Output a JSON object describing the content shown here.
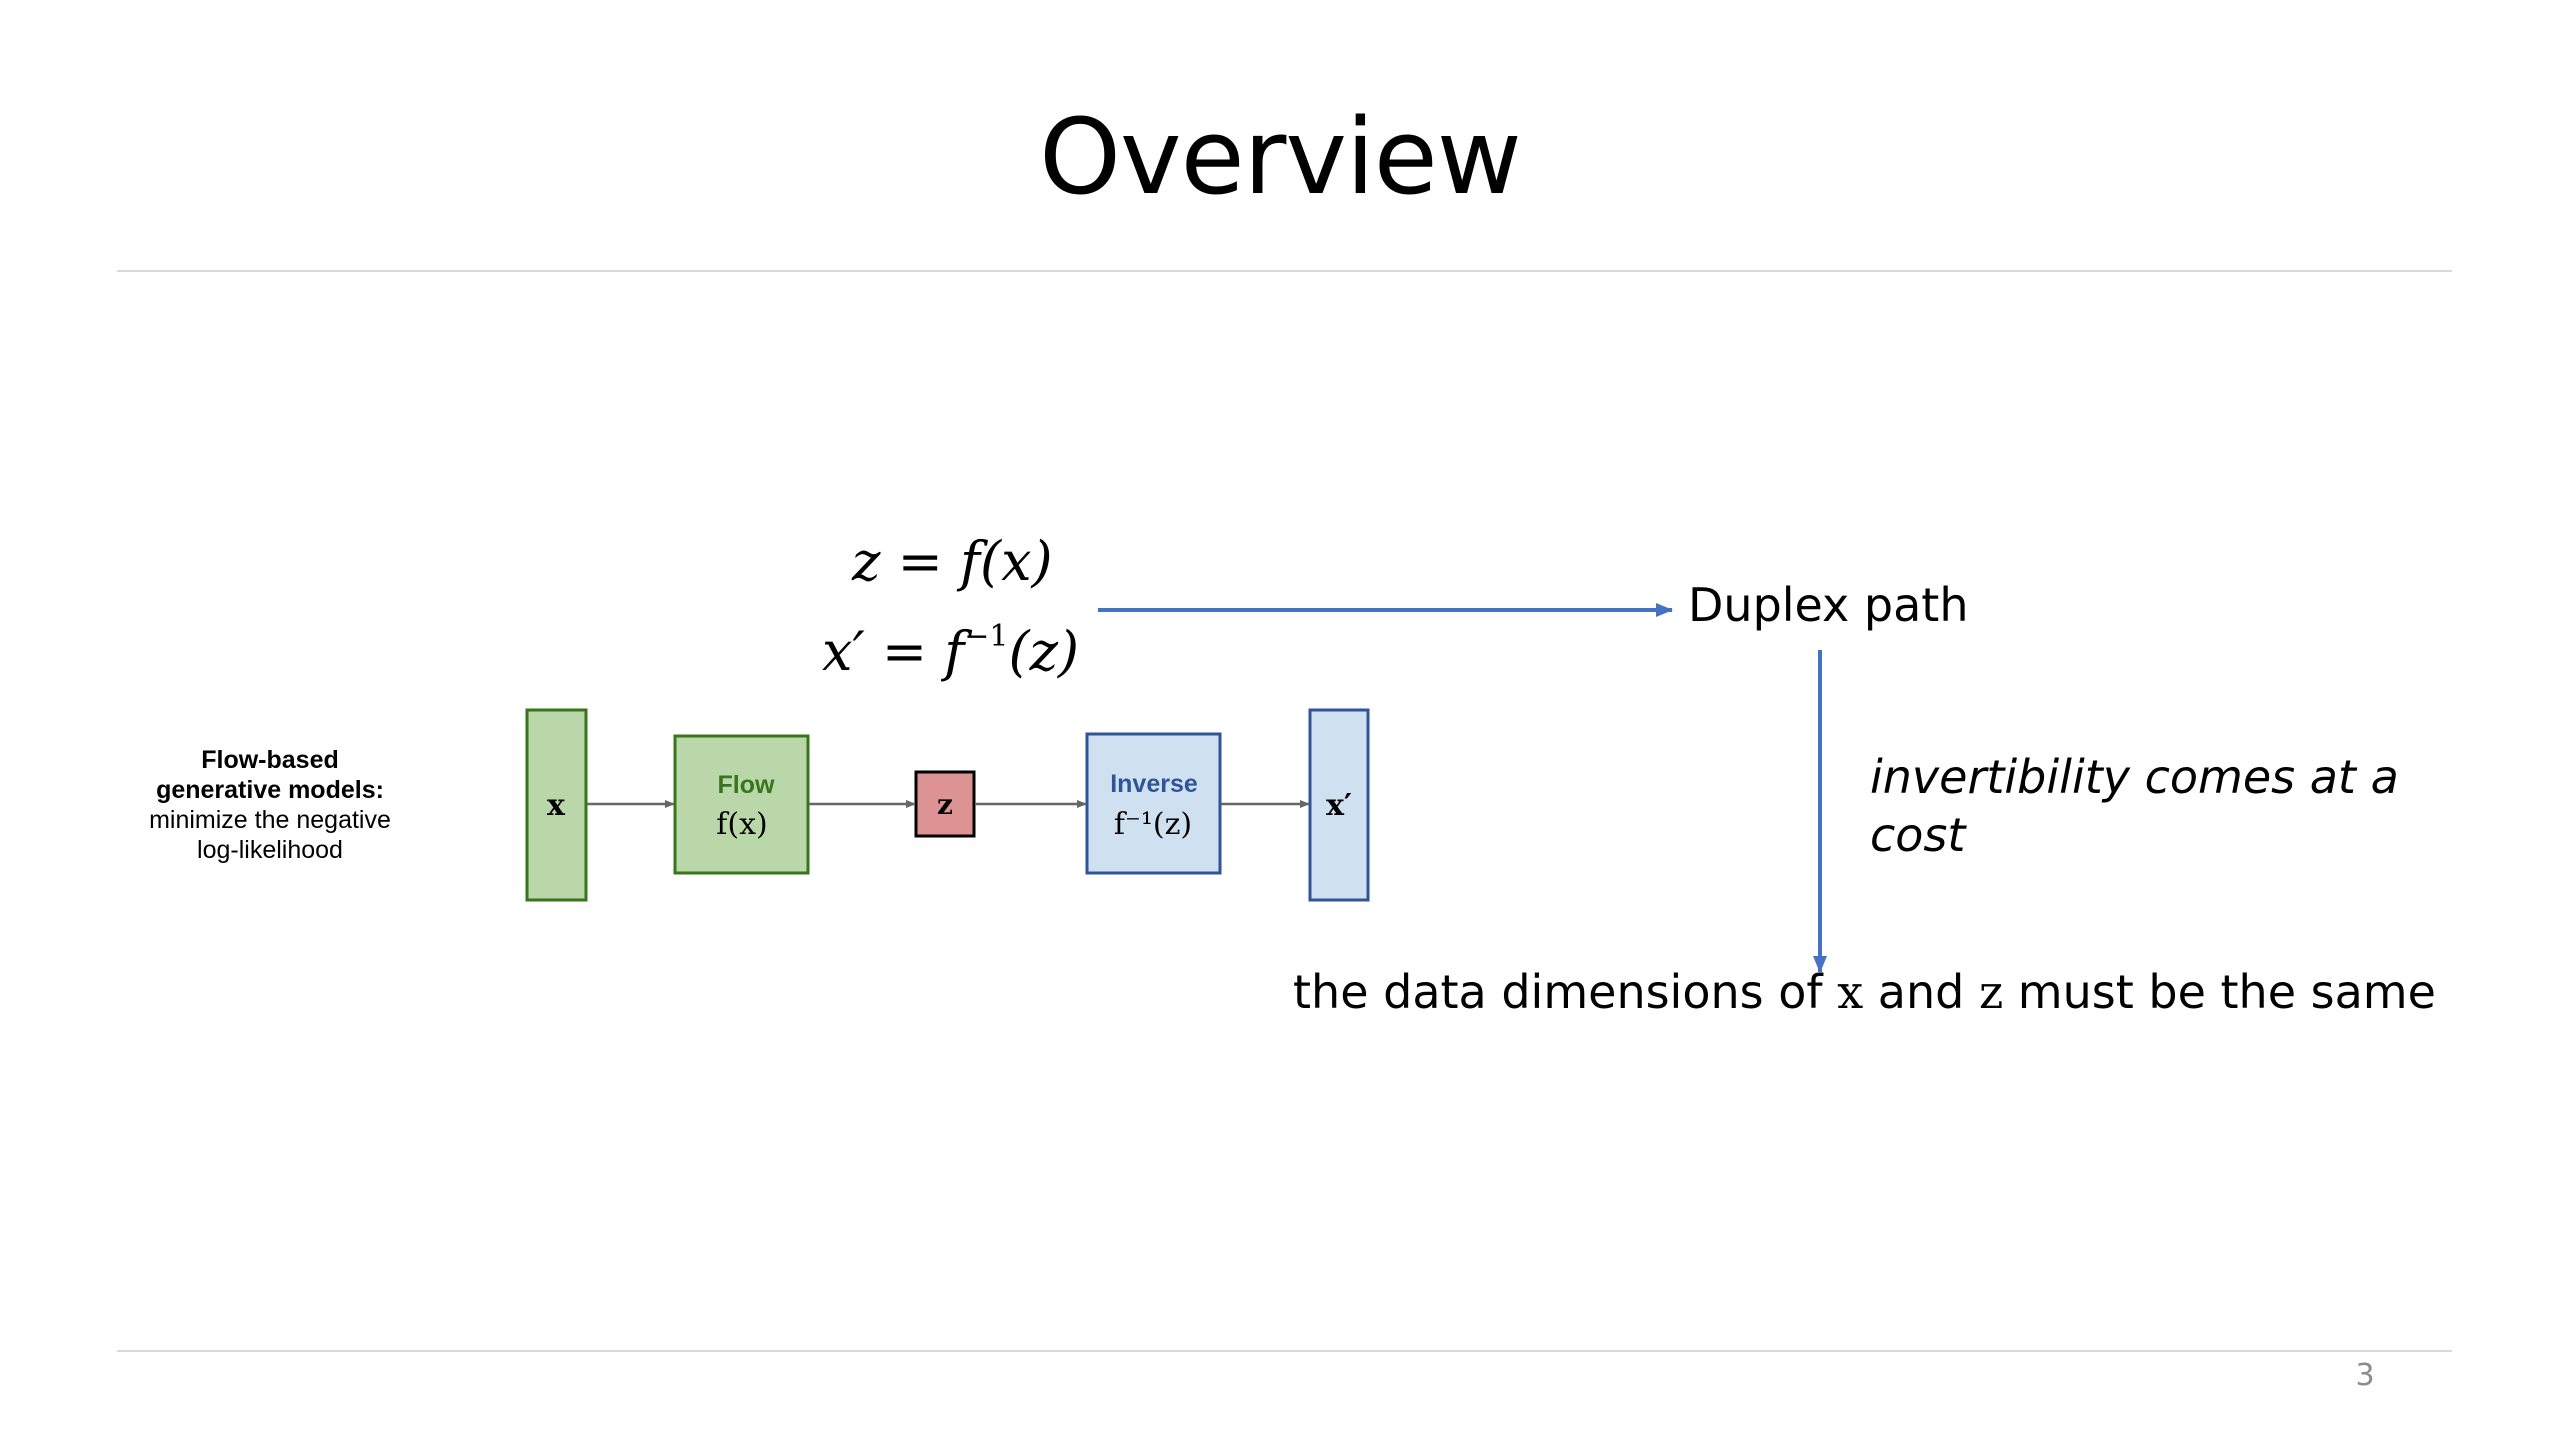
{
  "slide": {
    "title": "Overview",
    "page_number": "3"
  },
  "equations": {
    "forward": "z = f(x)",
    "inverse_lhs": "x′ = f",
    "inverse_sup": "−1",
    "inverse_rhs": "(z)"
  },
  "annotations": {
    "duplex_path": "Duplex path",
    "invertibility": "invertibility comes at a cost",
    "dims_prefix": "the data dimensions of ",
    "dims_var_x": "x",
    "dims_middle": " and ",
    "dims_var_z": "z",
    "dims_suffix": " must be the same"
  },
  "flow_diagram": {
    "caption_bold_1": "Flow-based",
    "caption_bold_2": "generative models:",
    "caption_line_3": "minimize the negative",
    "caption_line_4": "log-likelihood",
    "input_label": "x",
    "flow_title": "Flow",
    "flow_formula": "f(x)",
    "latent_label": "z",
    "inverse_title": "Inverse",
    "inverse_formula": "f⁻¹(z)",
    "output_label": "x′"
  },
  "colors": {
    "arrow_blue": "#4472c4",
    "green_fill": "#b9d7a8",
    "green_stroke": "#38761d",
    "red_fill": "#dd9393",
    "blue_fill": "#cfe0f1",
    "blue_stroke": "#2f5597",
    "gray_arrow": "#666666"
  }
}
